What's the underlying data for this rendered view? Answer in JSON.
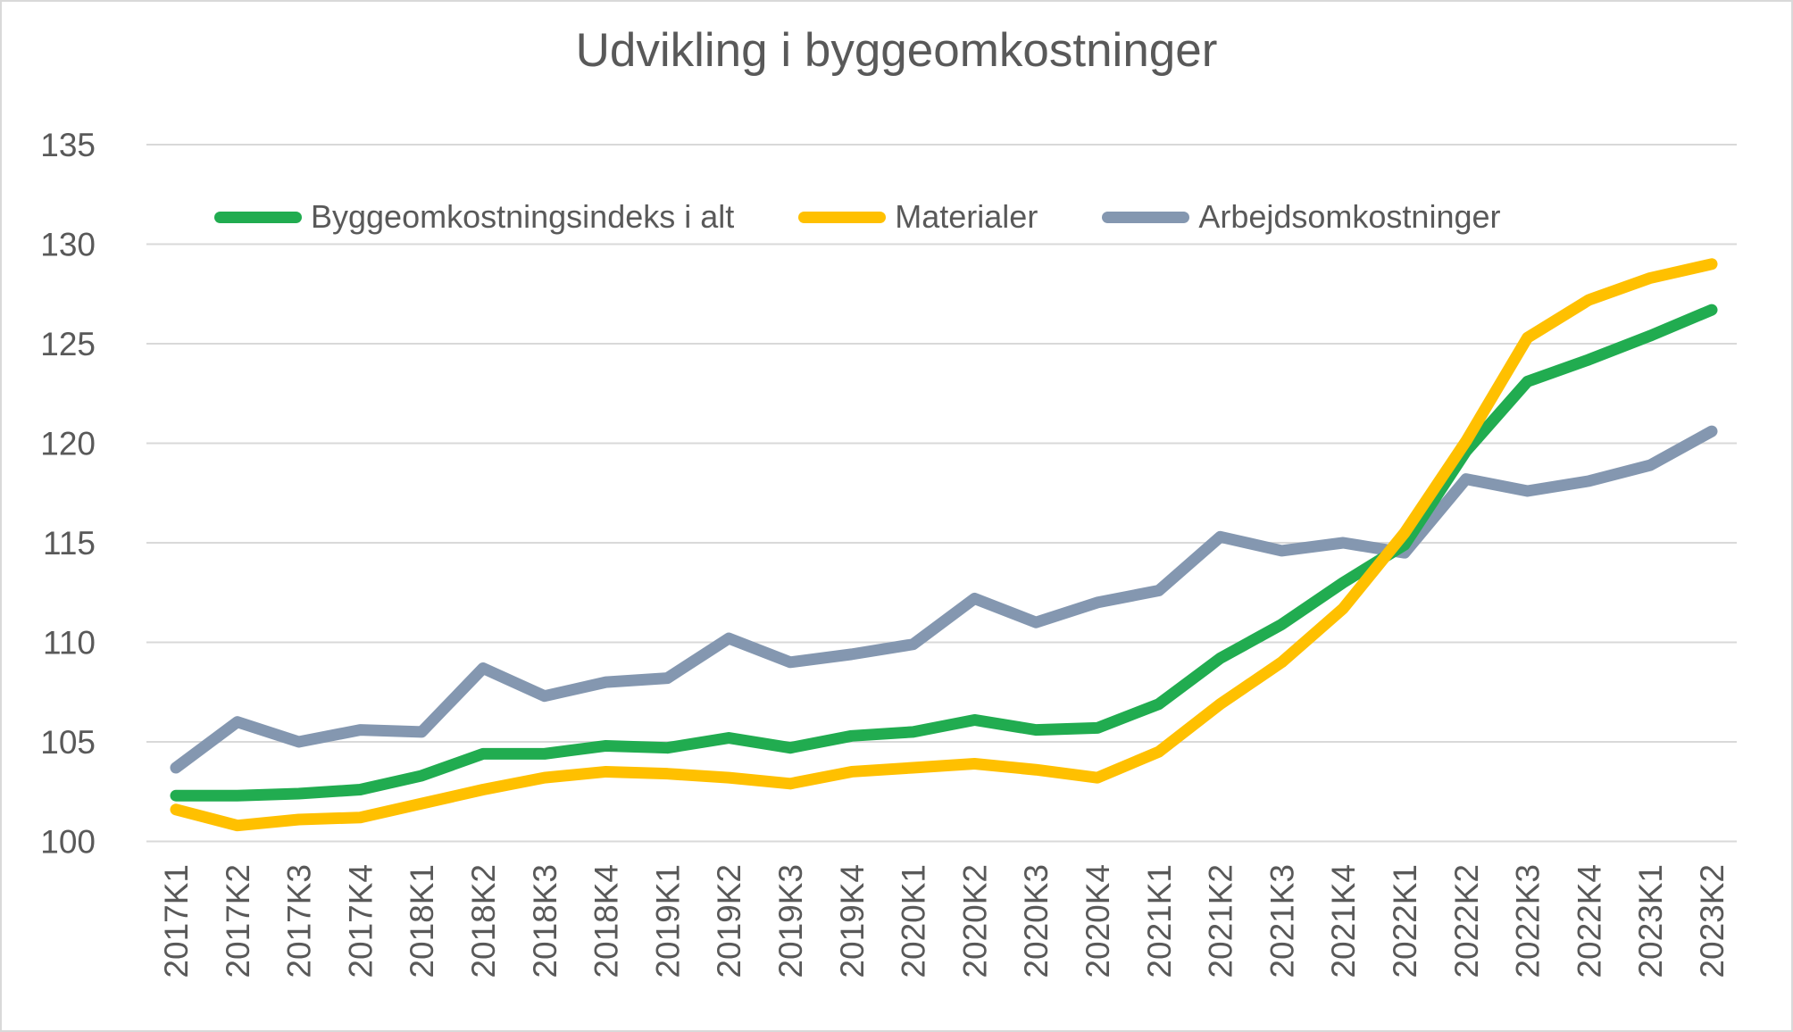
{
  "title": "Udvikling i byggeomkostninger",
  "colors": {
    "total": "#21ac50",
    "materials": "#ffc000",
    "labor": "#8497b0",
    "grid": "#d9d9d9",
    "text": "#595959",
    "background": "#ffffff",
    "border": "#d9d9d9"
  },
  "legend": {
    "items": [
      {
        "id": "total",
        "label": "Byggeomkostningsindeks i alt"
      },
      {
        "id": "materials",
        "label": "Materialer"
      },
      {
        "id": "labor",
        "label": "Arbejdsomkostninger"
      }
    ]
  },
  "chart_data": {
    "type": "line",
    "title": "Udvikling i byggeomkostninger",
    "xlabel": "",
    "ylabel": "",
    "ylim": [
      100,
      135
    ],
    "yticks": [
      100,
      105,
      110,
      115,
      120,
      125,
      130,
      135
    ],
    "grid": true,
    "legend_position": "top-left-inside",
    "categories": [
      "2017K1",
      "2017K2",
      "2017K3",
      "2017K4",
      "2018K1",
      "2018K2",
      "2018K3",
      "2018K4",
      "2019K1",
      "2019K2",
      "2019K3",
      "2019K4",
      "2020K1",
      "2020K2",
      "2020K3",
      "2020K4",
      "2021K1",
      "2021K2",
      "2021K3",
      "2021K4",
      "2022K1",
      "2022K2",
      "2022K3",
      "2022K4",
      "2023K1",
      "2023K2"
    ],
    "series": [
      {
        "name": "Arbejdsomkostninger",
        "color_key": "labor",
        "values": [
          103.7,
          106.0,
          105.0,
          105.6,
          105.5,
          108.7,
          107.3,
          108.0,
          108.2,
          110.2,
          109.0,
          109.4,
          109.9,
          112.2,
          111.0,
          112.0,
          112.6,
          115.3,
          114.6,
          115.0,
          114.5,
          118.2,
          117.6,
          118.1,
          118.9,
          120.6
        ]
      },
      {
        "name": "Byggeomkostningsindeks i alt",
        "color_key": "total",
        "values": [
          102.3,
          102.3,
          102.4,
          102.6,
          103.3,
          104.4,
          104.4,
          104.8,
          104.7,
          105.2,
          104.7,
          105.3,
          105.5,
          106.1,
          105.6,
          105.7,
          106.9,
          109.2,
          110.9,
          113.0,
          114.9,
          119.6,
          123.1,
          124.2,
          125.4,
          126.7
        ]
      },
      {
        "name": "Materialer",
        "color_key": "materials",
        "values": [
          101.6,
          100.8,
          101.1,
          101.2,
          101.9,
          102.6,
          103.2,
          103.5,
          103.4,
          103.2,
          102.9,
          103.5,
          103.7,
          103.9,
          103.6,
          103.2,
          104.5,
          106.9,
          109.0,
          111.7,
          115.5,
          120.1,
          125.3,
          127.2,
          128.3,
          129.0
        ]
      }
    ]
  }
}
